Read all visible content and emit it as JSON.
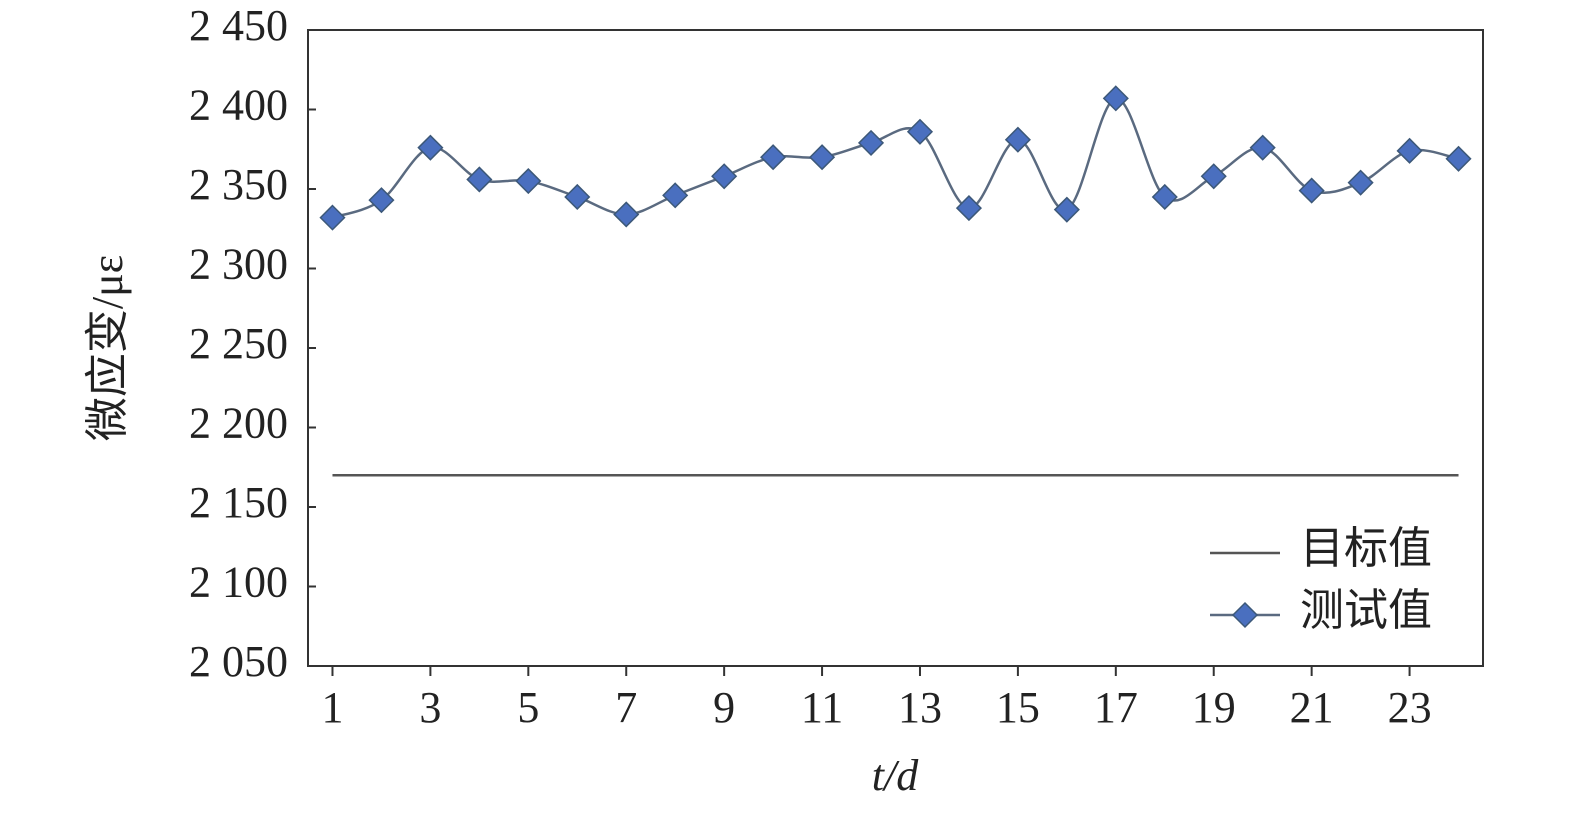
{
  "chart_data": {
    "type": "line",
    "x_label": "t/d",
    "y_label": "微应变/με",
    "x": [
      1,
      2,
      3,
      4,
      5,
      6,
      7,
      8,
      9,
      10,
      11,
      12,
      13,
      14,
      15,
      16,
      17,
      18,
      19,
      20,
      21,
      22,
      23,
      24
    ],
    "series": [
      {
        "name": "目标值",
        "color": "#555555",
        "marker": false,
        "values": [
          2170,
          2170,
          2170,
          2170,
          2170,
          2170,
          2170,
          2170,
          2170,
          2170,
          2170,
          2170,
          2170,
          2170,
          2170,
          2170,
          2170,
          2170,
          2170,
          2170,
          2170,
          2170,
          2170,
          2170
        ]
      },
      {
        "name": "测试值",
        "color": "#4a6fbf",
        "marker": true,
        "values": [
          2332,
          2343,
          2376,
          2356,
          2355,
          2345,
          2334,
          2346,
          2358,
          2370,
          2370,
          2379,
          2386,
          2338,
          2381,
          2337,
          2407,
          2345,
          2358,
          2376,
          2349,
          2354,
          2374,
          2369
        ]
      }
    ],
    "xlim": [
      0.5,
      24.5
    ],
    "xticks": [
      1,
      3,
      5,
      7,
      9,
      11,
      13,
      15,
      17,
      19,
      21,
      23
    ],
    "ylim": [
      2050,
      2450
    ],
    "yticks": [
      {
        "value": 2050,
        "label": "2 050"
      },
      {
        "value": 2100,
        "label": "2 100"
      },
      {
        "value": 2150,
        "label": "2 150"
      },
      {
        "value": 2200,
        "label": "2 200"
      },
      {
        "value": 2250,
        "label": "2 250"
      },
      {
        "value": 2300,
        "label": "2 300"
      },
      {
        "value": 2350,
        "label": "2 350"
      },
      {
        "value": 2400,
        "label": "2 400"
      },
      {
        "value": 2450,
        "label": "2 450"
      }
    ],
    "grid": false,
    "legend": "lower right"
  }
}
